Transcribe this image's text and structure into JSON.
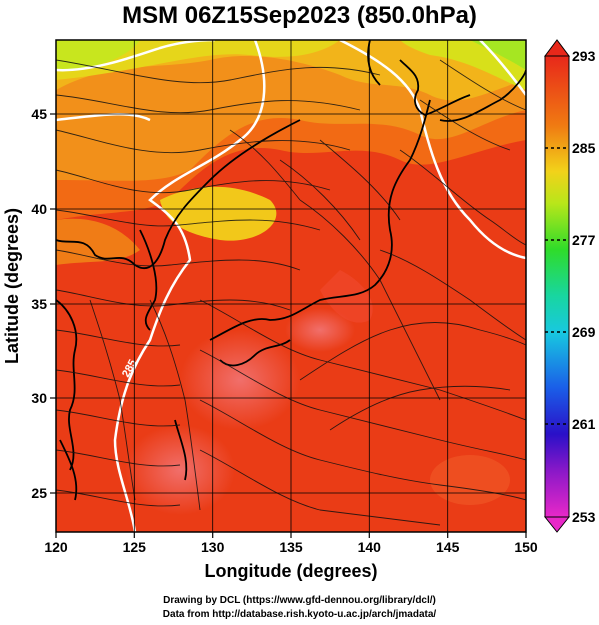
{
  "title": "MSM 06Z15Sep2023 (850.0hPa)",
  "x_axis": {
    "label": "Longitude (degrees)",
    "ticks": [
      "120",
      "125",
      "130",
      "135",
      "140",
      "145",
      "150"
    ]
  },
  "y_axis": {
    "label": "Latitude  (degrees)",
    "ticks": [
      "25",
      "30",
      "35",
      "40",
      "45"
    ]
  },
  "colorbar": {
    "labels": [
      "293",
      "285",
      "277",
      "269",
      "261",
      "253"
    ]
  },
  "contour_label": "285",
  "credits": {
    "line1": "Drawing by DCL (https://www.gfd-dennou.org/library/dcl/)",
    "line2": "Data from http://database.rish.kyoto-u.ac.jp/arch/jmadata/"
  },
  "map_data": {
    "lon_range": [
      120,
      150
    ],
    "lat_range": [
      22.4,
      47.6
    ],
    "field": "temperature (K) at 850 hPa with wind streamlines",
    "colorbar_range": [
      253,
      293
    ]
  }
}
